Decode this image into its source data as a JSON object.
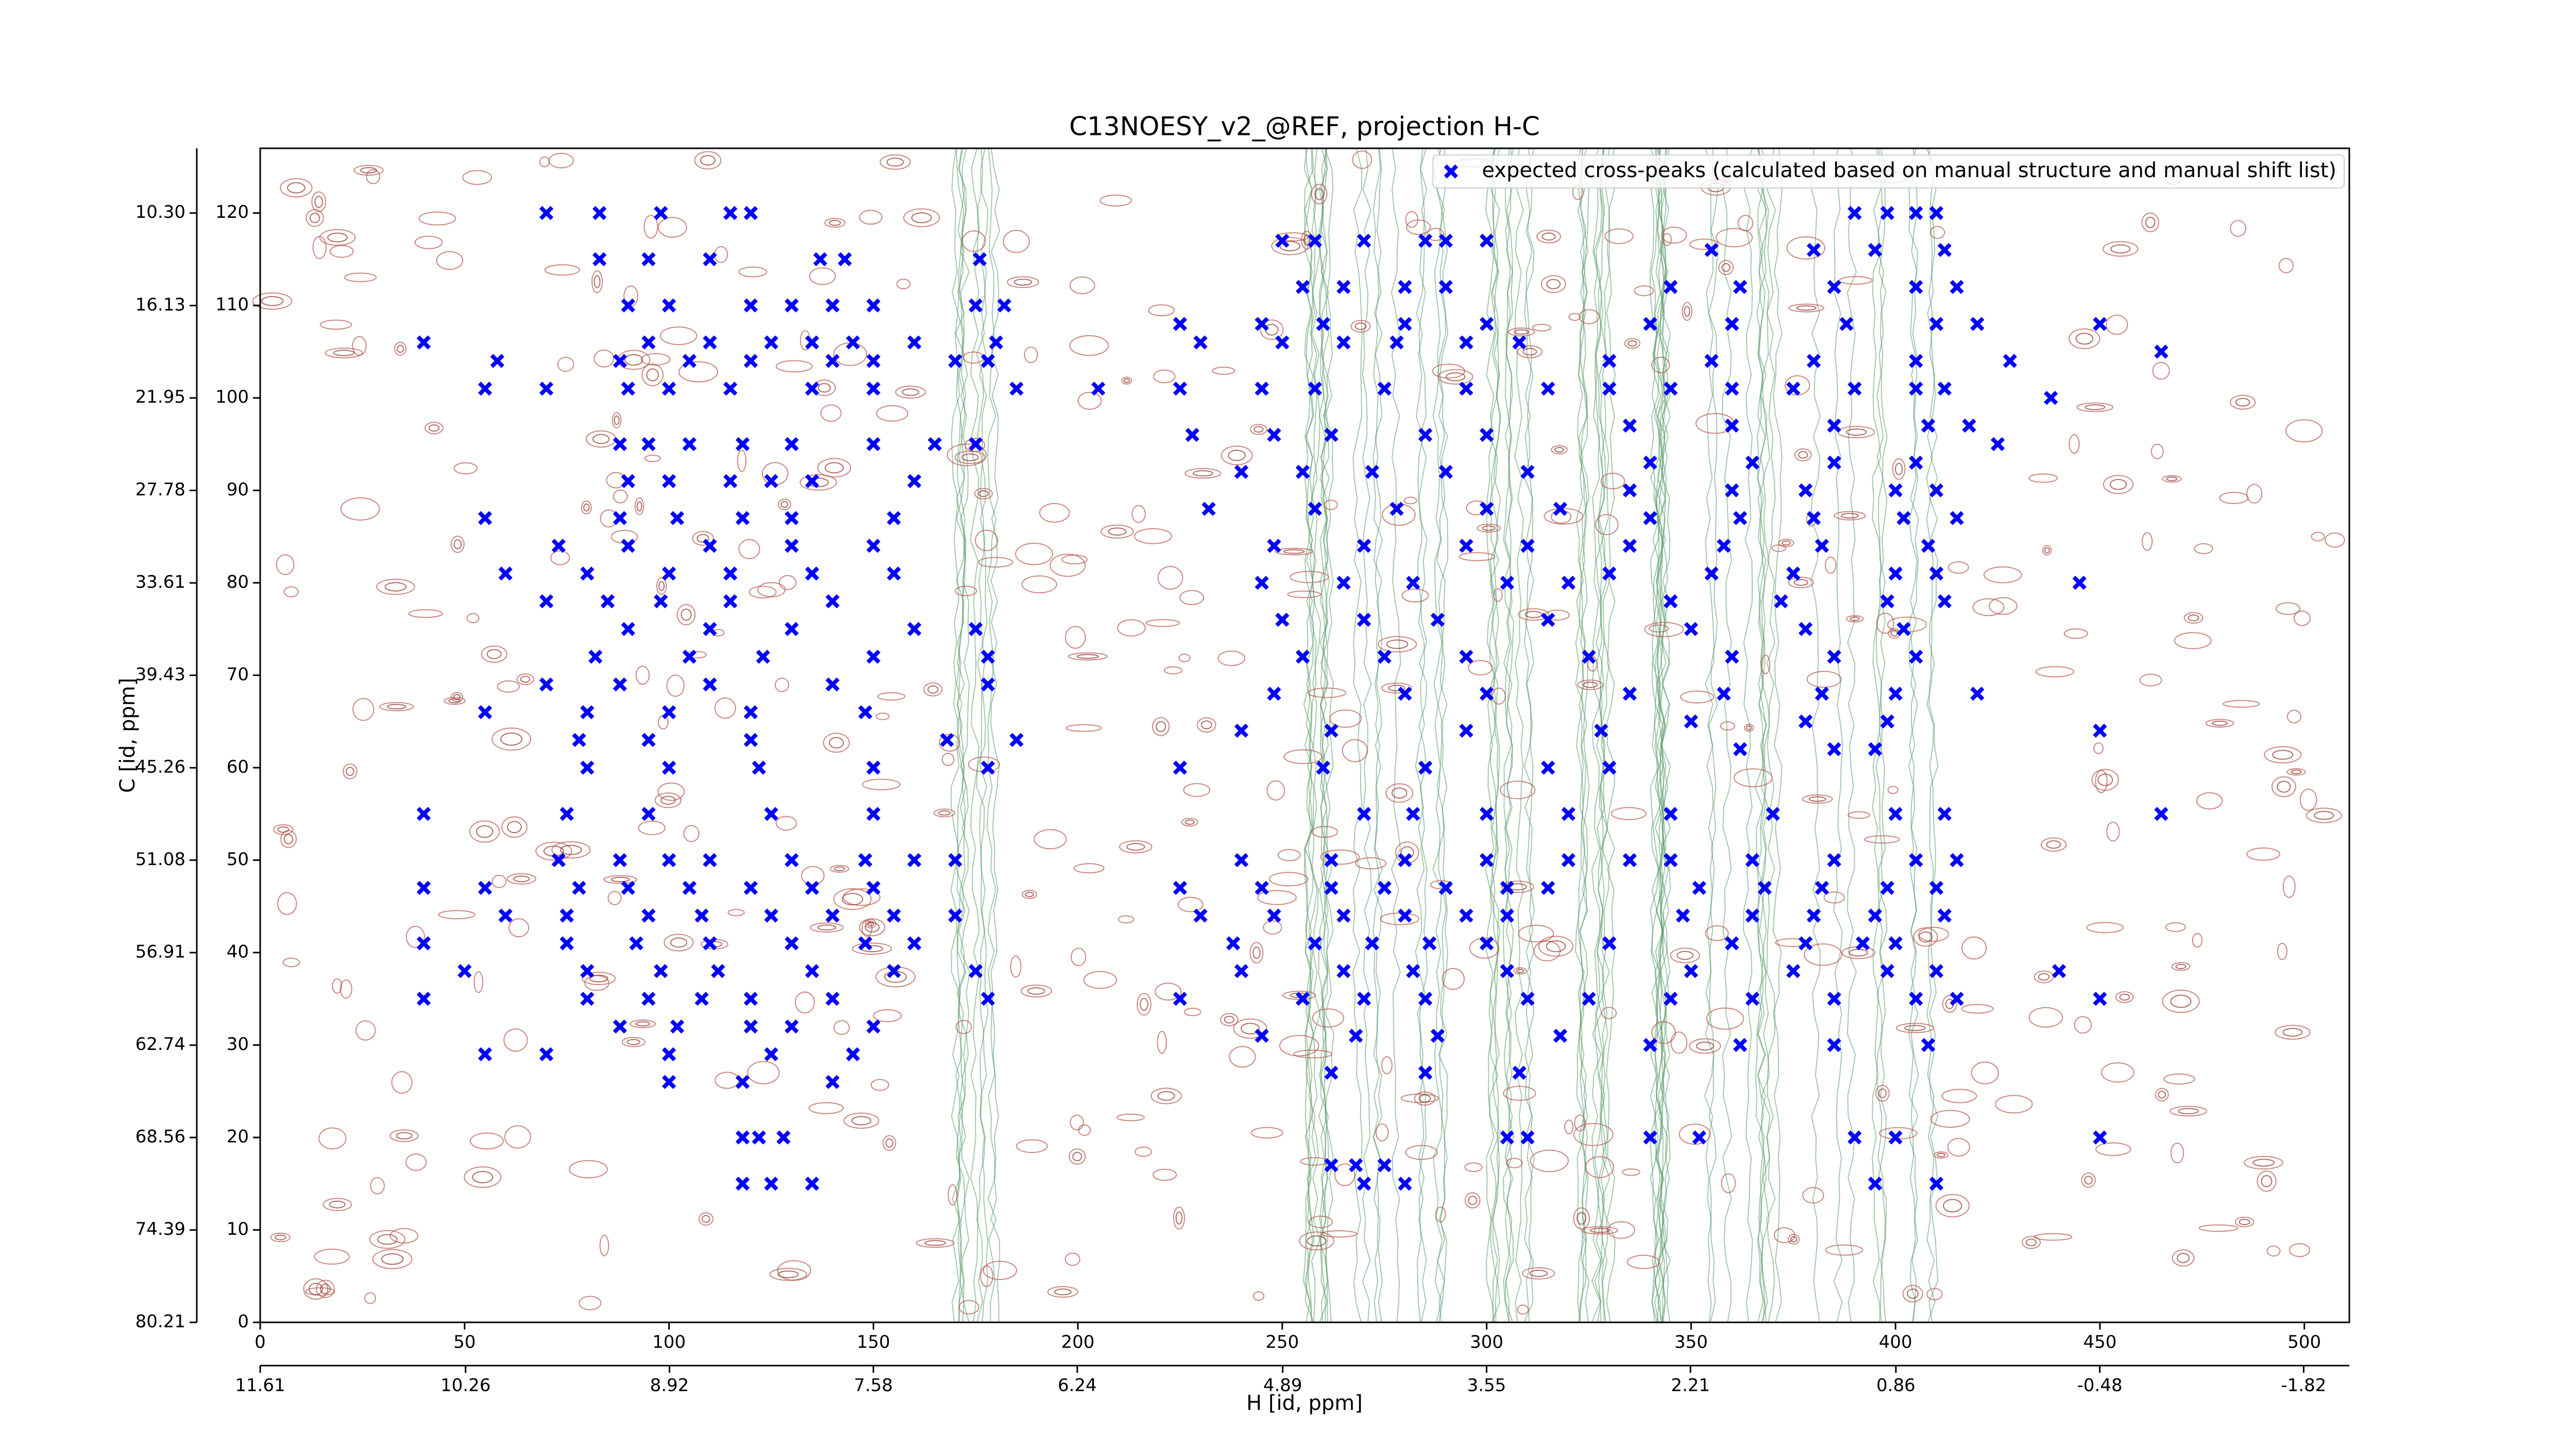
{
  "chart_data": {
    "type": "scatter",
    "title": "C13NOESY_v2_@REF, projection H-C",
    "xlabel": "H [id, ppm]",
    "ylabel": "C [id, ppm]",
    "xlim": [
      0,
      511
    ],
    "xticks": [
      0,
      50,
      100,
      150,
      200,
      250,
      300,
      350,
      400,
      450,
      500
    ],
    "ylim": [
      0,
      127
    ],
    "yticks": [
      0,
      10,
      20,
      30,
      40,
      50,
      60,
      70,
      80,
      90,
      100,
      110,
      120
    ],
    "x2lim": [
      11.61,
      -2.12
    ],
    "x2ticks": [
      11.61,
      10.26,
      8.92,
      7.58,
      6.24,
      4.89,
      3.55,
      2.21,
      0.86,
      -0.48,
      -1.82
    ],
    "y2lim": [
      80.21,
      6.22
    ],
    "y2ticks": [
      80.21,
      74.39,
      68.56,
      62.74,
      56.91,
      51.08,
      45.26,
      39.43,
      33.61,
      27.78,
      21.95,
      16.13,
      {
        "value": 10.3,
        "label": "10.30"
      }
    ],
    "legend": "upper right",
    "series": [
      {
        "name": "expected cross-peaks (calculated based on manual structure and manual shift list)",
        "color": "#0000ff",
        "x": [
          70,
          83,
          98,
          115,
          120,
          83,
          95,
          110,
          137,
          143,
          176,
          90,
          100,
          120,
          130,
          140,
          150,
          175,
          182,
          40,
          95,
          110,
          125,
          135,
          145,
          160,
          180,
          58,
          88,
          105,
          120,
          140,
          150,
          170,
          178,
          55,
          70,
          90,
          100,
          115,
          135,
          150,
          185,
          88,
          95,
          105,
          118,
          130,
          150,
          165,
          175,
          90,
          100,
          115,
          125,
          135,
          160,
          55,
          88,
          102,
          118,
          130,
          155,
          73,
          90,
          110,
          130,
          150,
          60,
          80,
          100,
          115,
          135,
          155,
          70,
          85,
          98,
          115,
          140,
          90,
          110,
          130,
          160,
          175,
          82,
          105,
          123,
          150,
          178,
          70,
          88,
          110,
          140,
          178,
          55,
          80,
          100,
          120,
          148,
          78,
          95,
          120,
          168,
          185,
          80,
          100,
          122,
          150,
          178,
          40,
          75,
          95,
          125,
          150,
          73,
          88,
          100,
          110,
          130,
          148,
          160,
          170,
          40,
          55,
          78,
          90,
          105,
          120,
          135,
          150,
          60,
          75,
          95,
          108,
          125,
          140,
          155,
          170,
          40,
          75,
          92,
          110,
          130,
          148,
          160,
          50,
          80,
          98,
          112,
          135,
          155,
          175,
          40,
          80,
          95,
          108,
          120,
          140,
          178,
          88,
          102,
          120,
          130,
          150,
          55,
          70,
          100,
          125,
          145,
          100,
          118,
          140,
          118,
          122,
          128,
          118,
          125,
          135,
          250,
          258,
          270,
          285,
          290,
          300,
          255,
          265,
          280,
          290,
          225,
          245,
          260,
          280,
          300,
          230,
          250,
          265,
          278,
          295,
          308,
          205,
          225,
          245,
          258,
          275,
          295,
          315,
          330,
          228,
          248,
          262,
          285,
          300,
          240,
          255,
          272,
          290,
          310,
          232,
          258,
          278,
          300,
          318,
          248,
          270,
          295,
          310,
          245,
          265,
          282,
          305,
          320,
          250,
          270,
          288,
          315,
          255,
          275,
          295,
          325,
          248,
          280,
          300,
          335,
          240,
          262,
          295,
          328,
          225,
          260,
          285,
          315,
          330,
          270,
          282,
          300,
          320,
          240,
          262,
          280,
          300,
          320,
          335,
          225,
          245,
          262,
          275,
          290,
          305,
          315,
          230,
          248,
          265,
          280,
          295,
          305,
          238,
          258,
          272,
          286,
          300,
          330,
          240,
          265,
          282,
          305,
          225,
          255,
          270,
          285,
          310,
          325,
          245,
          268,
          288,
          318,
          262,
          285,
          308,
          305,
          310,
          262,
          268,
          275,
          270,
          280,
          390,
          398,
          405,
          410,
          355,
          380,
          395,
          412,
          345,
          362,
          385,
          405,
          415,
          340,
          360,
          388,
          410,
          420,
          330,
          355,
          380,
          405,
          428,
          345,
          360,
          375,
          390,
          405,
          412,
          335,
          360,
          385,
          408,
          418,
          340,
          365,
          385,
          405,
          335,
          360,
          378,
          400,
          410,
          340,
          362,
          380,
          402,
          415,
          335,
          358,
          382,
          408,
          330,
          355,
          375,
          400,
          410,
          345,
          372,
          398,
          412,
          350,
          378,
          402,
          360,
          385,
          405,
          358,
          382,
          400,
          420,
          350,
          378,
          398,
          362,
          385,
          395,
          345,
          370,
          400,
          412,
          345,
          365,
          385,
          405,
          415,
          352,
          368,
          382,
          398,
          410,
          348,
          365,
          380,
          395,
          412,
          360,
          378,
          392,
          400,
          350,
          375,
          398,
          410,
          345,
          365,
          385,
          405,
          415,
          340,
          362,
          385,
          408,
          340,
          352,
          390,
          400,
          395,
          410,
          425,
          438,
          450,
          445,
          450,
          440,
          450,
          465,
          465,
          450
        ],
        "values": [
          120,
          120,
          120,
          120,
          120,
          115,
          115,
          115,
          115,
          115,
          115,
          110,
          110,
          110,
          110,
          110,
          110,
          110,
          110,
          106,
          106,
          106,
          106,
          106,
          106,
          106,
          106,
          104,
          104,
          104,
          104,
          104,
          104,
          104,
          104,
          101,
          101,
          101,
          101,
          101,
          101,
          101,
          101,
          95,
          95,
          95,
          95,
          95,
          95,
          95,
          95,
          91,
          91,
          91,
          91,
          91,
          91,
          87,
          87,
          87,
          87,
          87,
          87,
          84,
          84,
          84,
          84,
          84,
          81,
          81,
          81,
          81,
          81,
          81,
          78,
          78,
          78,
          78,
          78,
          75,
          75,
          75,
          75,
          75,
          72,
          72,
          72,
          72,
          72,
          69,
          69,
          69,
          69,
          69,
          66,
          66,
          66,
          66,
          66,
          63,
          63,
          63,
          63,
          63,
          60,
          60,
          60,
          60,
          60,
          55,
          55,
          55,
          55,
          55,
          50,
          50,
          50,
          50,
          50,
          50,
          50,
          50,
          47,
          47,
          47,
          47,
          47,
          47,
          47,
          47,
          44,
          44,
          44,
          44,
          44,
          44,
          44,
          44,
          41,
          41,
          41,
          41,
          41,
          41,
          41,
          38,
          38,
          38,
          38,
          38,
          38,
          38,
          35,
          35,
          35,
          35,
          35,
          35,
          35,
          32,
          32,
          32,
          32,
          32,
          29,
          29,
          29,
          29,
          29,
          26,
          26,
          26,
          20,
          20,
          20,
          15,
          15,
          15,
          117,
          117,
          117,
          117,
          117,
          117,
          112,
          112,
          112,
          112,
          108,
          108,
          108,
          108,
          108,
          106,
          106,
          106,
          106,
          106,
          106,
          101,
          101,
          101,
          101,
          101,
          101,
          101,
          101,
          96,
          96,
          96,
          96,
          96,
          92,
          92,
          92,
          92,
          92,
          88,
          88,
          88,
          88,
          88,
          84,
          84,
          84,
          84,
          80,
          80,
          80,
          80,
          80,
          76,
          76,
          76,
          76,
          72,
          72,
          72,
          72,
          68,
          68,
          68,
          68,
          64,
          64,
          64,
          64,
          60,
          60,
          60,
          60,
          60,
          55,
          55,
          55,
          55,
          50,
          50,
          50,
          50,
          50,
          50,
          47,
          47,
          47,
          47,
          47,
          47,
          47,
          44,
          44,
          44,
          44,
          44,
          44,
          41,
          41,
          41,
          41,
          41,
          41,
          38,
          38,
          38,
          38,
          35,
          35,
          35,
          35,
          35,
          35,
          31,
          31,
          31,
          31,
          27,
          27,
          27,
          20,
          20,
          17,
          17,
          17,
          15,
          15,
          120,
          120,
          120,
          120,
          116,
          116,
          116,
          116,
          112,
          112,
          112,
          112,
          112,
          108,
          108,
          108,
          108,
          108,
          104,
          104,
          104,
          104,
          104,
          101,
          101,
          101,
          101,
          101,
          101,
          97,
          97,
          97,
          97,
          97,
          93,
          93,
          93,
          93,
          90,
          90,
          90,
          90,
          90,
          87,
          87,
          87,
          87,
          87,
          84,
          84,
          84,
          84,
          81,
          81,
          81,
          81,
          81,
          78,
          78,
          78,
          78,
          75,
          75,
          75,
          72,
          72,
          72,
          68,
          68,
          68,
          68,
          65,
          65,
          65,
          62,
          62,
          62,
          55,
          55,
          55,
          55,
          50,
          50,
          50,
          50,
          50,
          47,
          47,
          47,
          47,
          47,
          44,
          44,
          44,
          44,
          44,
          41,
          41,
          41,
          41,
          38,
          38,
          38,
          38,
          35,
          35,
          35,
          35,
          35,
          30,
          30,
          30,
          30,
          20,
          20,
          20,
          20,
          15,
          15,
          95,
          100,
          108,
          80,
          64,
          38,
          35,
          55,
          105,
          20
        ]
      }
    ]
  }
}
